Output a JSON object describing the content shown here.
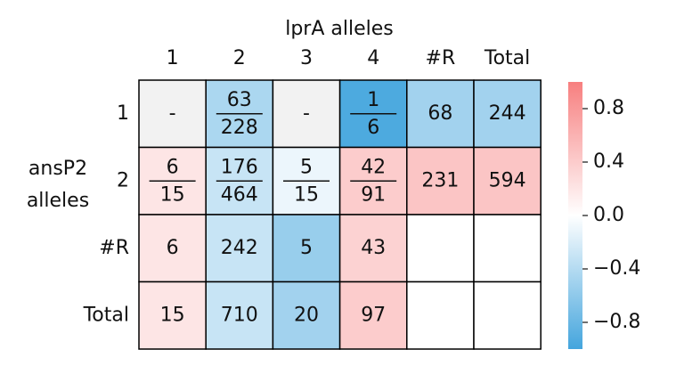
{
  "chart_data": {
    "type": "heatmap",
    "title": "lprA alleles",
    "y_label": [
      "ansP2",
      "alleles"
    ],
    "columns": [
      "1",
      "2",
      "3",
      "4",
      "#R",
      "Total"
    ],
    "rows": [
      "1",
      "2",
      "#R",
      "Total"
    ],
    "values": [
      [
        null,
        -0.45,
        null,
        -0.95,
        -0.5,
        -0.5
      ],
      [
        0.2,
        -0.3,
        -0.1,
        0.4,
        0.45,
        0.45
      ],
      [
        0.2,
        -0.3,
        -0.55,
        0.35,
        0,
        0
      ],
      [
        0.2,
        -0.3,
        -0.5,
        0.4,
        0,
        0
      ]
    ],
    "cell_labels": [
      [
        "-",
        [
          "63",
          "228"
        ],
        "-",
        [
          "1",
          "6"
        ],
        "68",
        "244"
      ],
      [
        [
          "6",
          "15"
        ],
        [
          "176",
          "464"
        ],
        [
          "5",
          "15"
        ],
        [
          "42",
          "91"
        ],
        "231",
        "594"
      ],
      [
        "6",
        "242",
        "5",
        "43",
        null,
        null
      ],
      [
        "15",
        "710",
        "20",
        "97",
        null,
        null
      ]
    ],
    "cmap": [
      "#44a5dd",
      "#ffffff",
      "#f77f7f"
    ],
    "na_color": "#f2f2f2",
    "ylim": [
      -1,
      1
    ],
    "yticks": [
      0.8,
      0.4,
      {
        "value": 0,
        "label": "0.0"
      },
      {
        "value": -0.4,
        "label": "−0.4"
      },
      {
        "value": -0.8,
        "label": "−0.8"
      }
    ]
  }
}
